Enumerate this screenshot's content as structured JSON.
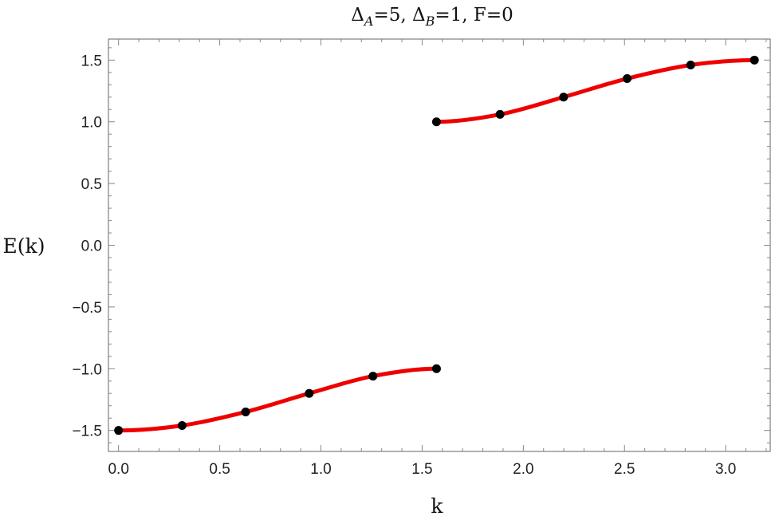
{
  "chart_data": {
    "type": "line",
    "title": {
      "delta": "Δ",
      "a_sub": "A",
      "a_rest": "=5,  ",
      "b_sub": "B",
      "b_rest": "=1,  F=0"
    },
    "xlabel": "k",
    "ylabel": "E(k)",
    "xlim": [
      -0.05,
      3.22
    ],
    "ylim": [
      -1.67,
      1.67
    ],
    "xticks": [
      0.0,
      0.5,
      1.0,
      1.5,
      2.0,
      2.5,
      3.0
    ],
    "xtick_labels": [
      "0.0",
      "0.5",
      "1.0",
      "1.5",
      "2.0",
      "2.5",
      "3.0"
    ],
    "yticks": [
      -1.5,
      -1.0,
      -0.5,
      0.0,
      0.5,
      1.0,
      1.5
    ],
    "ytick_labels": [
      "−1.5",
      "−1.0",
      "−0.5",
      "0.0",
      "0.5",
      "1.0",
      "1.5"
    ],
    "grid": false,
    "curve_color": "#ee0000",
    "point_color": "#000000",
    "series": [
      {
        "band": "lower",
        "x": [
          0.0,
          0.314,
          0.628,
          0.942,
          1.257,
          1.571
        ],
        "y": [
          -1.5,
          -1.46,
          -1.35,
          -1.2,
          -1.06,
          -1.0
        ]
      },
      {
        "band": "upper",
        "x": [
          1.571,
          1.885,
          2.199,
          2.513,
          2.827,
          3.142
        ],
        "y": [
          1.0,
          1.06,
          1.2,
          1.35,
          1.46,
          1.5
        ]
      }
    ]
  }
}
